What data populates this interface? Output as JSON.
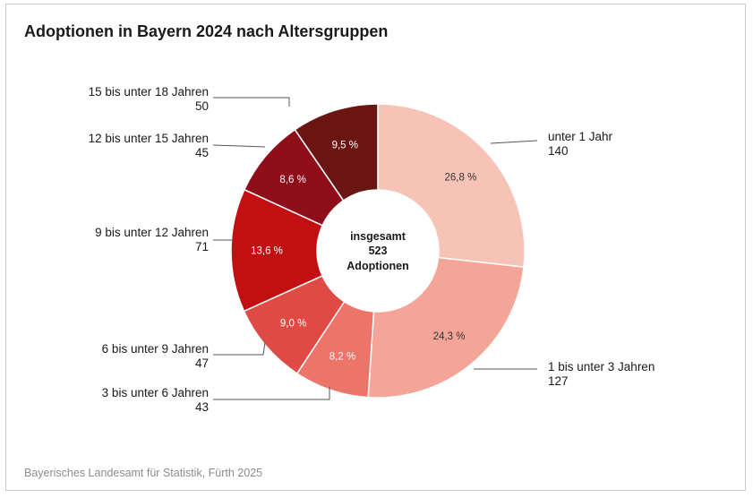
{
  "title": "Adoptionen in Bayern 2024 nach Altersgruppen",
  "source": "Bayerisches Landesamt für Statistik, Fürth 2025",
  "chart_data": {
    "type": "pie",
    "variant": "donut",
    "title": "Adoptionen in Bayern 2024 nach Altersgruppen",
    "center_label": [
      "insgesamt",
      "523",
      "Adoptionen"
    ],
    "total": 523,
    "slices": [
      {
        "label": "unter 1 Jahr",
        "value": 140,
        "percent": "26,8 %",
        "color": "#f7c3b6"
      },
      {
        "label": "1 bis unter 3 Jahren",
        "value": 127,
        "percent": "24,3 %",
        "color": "#f4a597"
      },
      {
        "label": "3 bis unter 6 Jahren",
        "value": 43,
        "percent": "8,2 %",
        "color": "#ed7468"
      },
      {
        "label": "6 bis unter 9 Jahren",
        "value": 47,
        "percent": "9,0 %",
        "color": "#e04a44"
      },
      {
        "label": "9 bis unter 12 Jahren",
        "value": 71,
        "percent": "13,6 %",
        "color": "#c20f12"
      },
      {
        "label": "12 bis unter 15 Jahren",
        "value": 45,
        "percent": "8,6 %",
        "color": "#8e0e1a"
      },
      {
        "label": "15 bis unter 18 Jahren",
        "value": 50,
        "percent": "9,5 %",
        "color": "#6a1512"
      }
    ]
  }
}
